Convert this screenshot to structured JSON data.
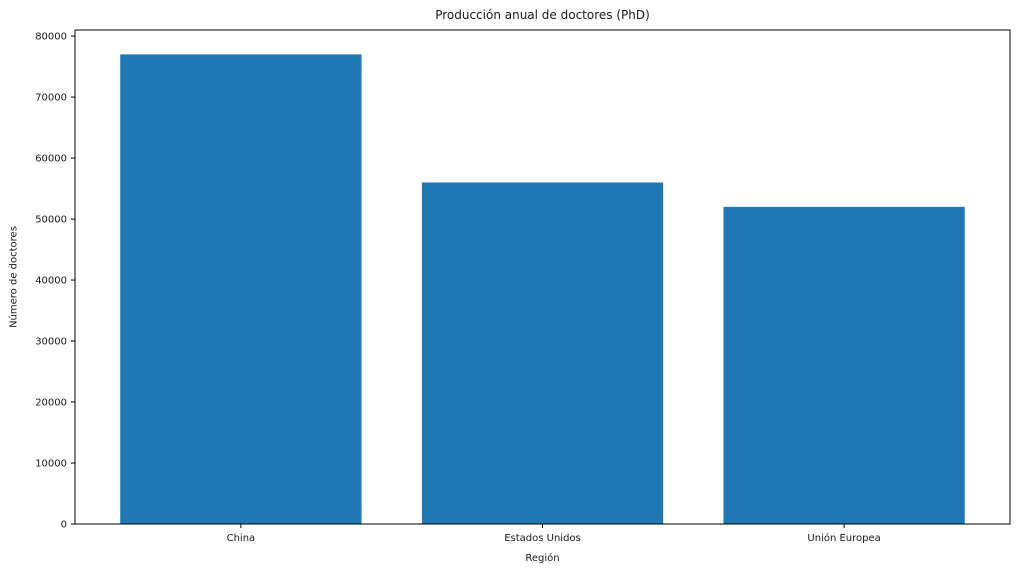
{
  "chart_data": {
    "type": "bar",
    "title": "Producción anual de doctores (PhD)",
    "xlabel": "Región",
    "ylabel": "Número de doctores",
    "categories": [
      "China",
      "Estados Unidos",
      "Unión Europea"
    ],
    "values": [
      77000,
      56000,
      52000
    ],
    "yticks": [
      0,
      10000,
      20000,
      30000,
      40000,
      50000,
      60000,
      70000,
      80000
    ],
    "ylim": [
      0,
      81000
    ],
    "xlim": [
      -0.55,
      2.55
    ],
    "bar_width": 0.8,
    "bar_color": "#1f77b4",
    "spine_color": "#000000",
    "background_color": "#ffffff",
    "grid": false,
    "legend_position": "none"
  }
}
